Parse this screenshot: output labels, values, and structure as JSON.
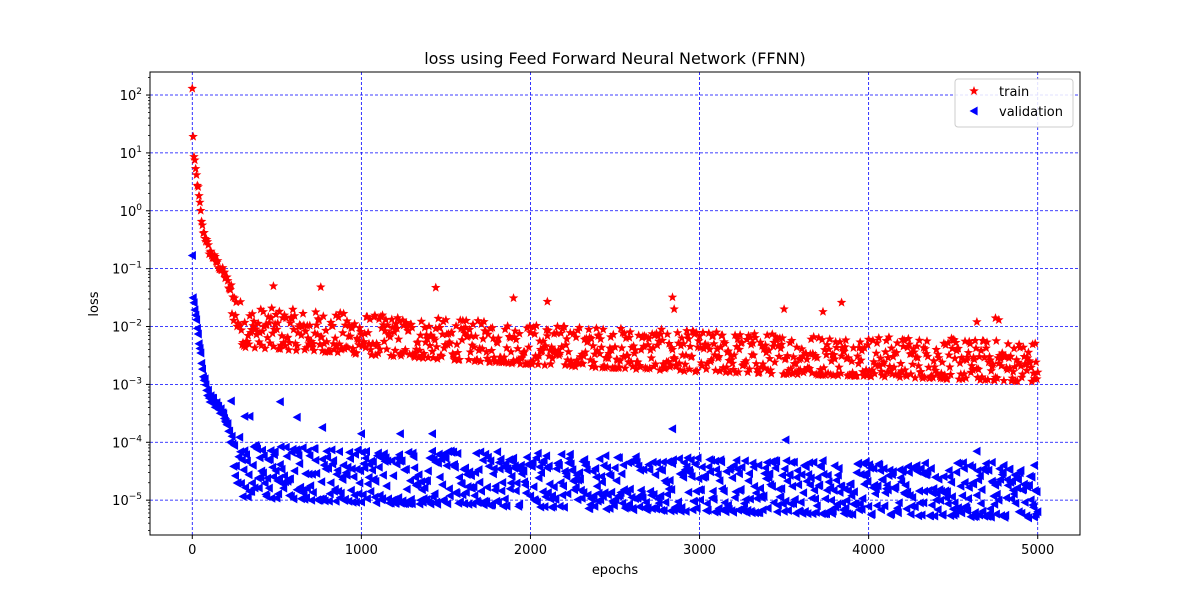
{
  "chart_data": {
    "type": "scatter",
    "title": "loss using Feed Forward Neural Network (FFNN)",
    "xlabel": "epochs",
    "ylabel": "loss",
    "xlim": [
      -250,
      5250
    ],
    "ylim": [
      2.5e-06,
      250
    ],
    "yscale": "log",
    "grid": true,
    "grid_color": "#0000ff",
    "legend_placement": "top-right",
    "x_ticks": [
      0,
      1000,
      2000,
      3000,
      4000,
      5000
    ],
    "x_tick_labels": [
      "0",
      "1000",
      "2000",
      "3000",
      "4000",
      "5000"
    ],
    "y_ticks": [
      1e-05,
      0.0001,
      0.001,
      0.01,
      0.1,
      1,
      10,
      100
    ],
    "y_tick_labels": [
      {
        "base": "10",
        "exp": "−5"
      },
      {
        "base": "10",
        "exp": "−4"
      },
      {
        "base": "10",
        "exp": "−3"
      },
      {
        "base": "10",
        "exp": "−2"
      },
      {
        "base": "10",
        "exp": "−1"
      },
      {
        "base": "10",
        "exp": "0"
      },
      {
        "base": "10",
        "exp": "1"
      },
      {
        "base": "10",
        "exp": "2"
      }
    ],
    "epochs": [
      0,
      5000
    ],
    "series": [
      {
        "name": "train",
        "color": "#ff0000",
        "marker": "star",
        "key_points": [
          [
            0,
            120
          ],
          [
            5,
            20
          ],
          [
            10,
            8
          ],
          [
            30,
            3
          ],
          [
            60,
            0.5
          ],
          [
            100,
            0.2
          ],
          [
            150,
            0.12
          ],
          [
            200,
            0.07
          ],
          [
            250,
            0.02
          ],
          [
            300,
            0.008
          ],
          [
            1000,
            0.006
          ],
          [
            2000,
            0.004
          ],
          [
            3000,
            0.003
          ],
          [
            4000,
            0.0025
          ],
          [
            5000,
            0.002
          ]
        ],
        "spread_low_ratio": 0.55,
        "spread_high_ratio": 2.8,
        "outliers": [
          [
            480,
            0.05
          ],
          [
            760,
            0.048
          ],
          [
            1440,
            0.047
          ],
          [
            1900,
            0.031
          ],
          [
            2100,
            0.027
          ],
          [
            2840,
            0.032
          ],
          [
            2850,
            0.02
          ],
          [
            3500,
            0.02
          ],
          [
            3730,
            0.018
          ],
          [
            3840,
            0.026
          ],
          [
            4640,
            0.012
          ],
          [
            4750,
            0.014
          ],
          [
            4770,
            0.013
          ]
        ]
      },
      {
        "name": "validation",
        "color": "#0000ff",
        "marker": "triangle-left",
        "key_points": [
          [
            0,
            0.15
          ],
          [
            5,
            0.03
          ],
          [
            15,
            0.02
          ],
          [
            40,
            0.005
          ],
          [
            70,
            0.0012
          ],
          [
            100,
            0.0006
          ],
          [
            150,
            0.0004
          ],
          [
            200,
            0.00025
          ],
          [
            230,
            0.0001
          ],
          [
            260,
            3e-05
          ],
          [
            300,
            1.6e-05
          ],
          [
            1000,
            1.3e-05
          ],
          [
            2000,
            1.1e-05
          ],
          [
            3000,
            9e-06
          ],
          [
            4000,
            8e-06
          ],
          [
            5000,
            7e-06
          ]
        ],
        "spread_low_ratio": 0.7,
        "spread_high_ratio": 6.0,
        "outliers": [
          [
            520,
            0.0005
          ],
          [
            310,
            0.00028
          ],
          [
            340,
            0.00028
          ],
          [
            620,
            0.00027
          ],
          [
            770,
            0.00018
          ],
          [
            1000,
            0.00014
          ],
          [
            1230,
            0.00014
          ],
          [
            1420,
            0.00014
          ],
          [
            2840,
            0.00017
          ],
          [
            3510,
            0.00011
          ],
          [
            4640,
            7e-05
          ],
          [
            4730,
            4.5e-05
          ],
          [
            4980,
            4e-05
          ]
        ]
      }
    ]
  }
}
